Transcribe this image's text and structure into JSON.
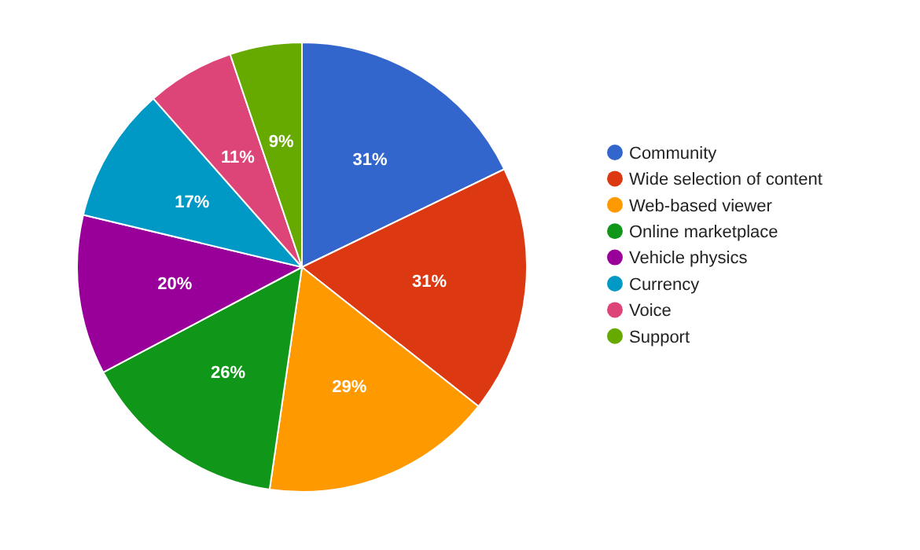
{
  "chart_data": {
    "type": "pie",
    "categories": [
      "Community",
      "Wide selection of content",
      "Web-based viewer",
      "Online marketplace",
      "Vehicle physics",
      "Currency",
      "Voice",
      "Support"
    ],
    "values": [
      31,
      31,
      29,
      26,
      20,
      17,
      11,
      9
    ],
    "value_labels": [
      "31%",
      "31%",
      "29%",
      "26%",
      "20%",
      "17%",
      "11%",
      "9%"
    ],
    "colors": [
      "#3366cc",
      "#dc3912",
      "#ff9900",
      "#109618",
      "#990099",
      "#0099c6",
      "#dd4477",
      "#66aa00"
    ],
    "legend": "right"
  }
}
